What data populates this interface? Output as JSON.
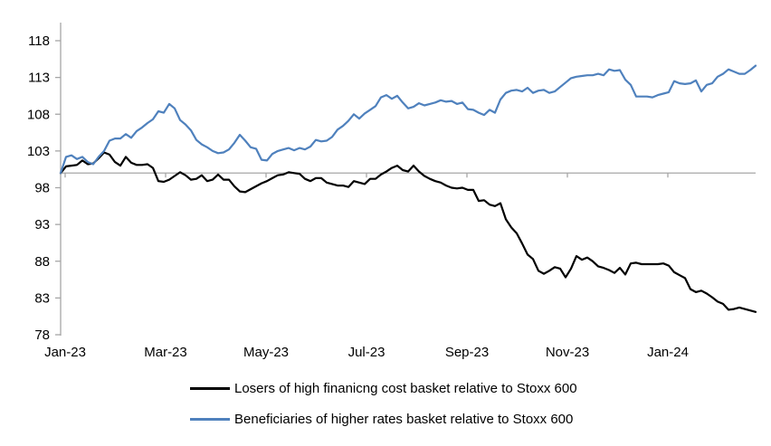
{
  "chart_data": {
    "type": "line",
    "title": "",
    "xlabel": "",
    "ylabel": "",
    "ylim": [
      78,
      118
    ],
    "y_ticks": [
      78,
      83,
      88,
      93,
      98,
      103,
      108,
      113,
      118
    ],
    "x_tick_labels": [
      "Jan-23",
      "Mar-23",
      "May-23",
      "Jul-23",
      "Sep-23",
      "Nov-23",
      "Jan-24"
    ],
    "x_range_note": "daily data Jan-2023 through late Feb-2024, uniformly spaced",
    "baseline_value": 100,
    "grid": "off",
    "legend_position": "bottom-left-stacked",
    "axis_color": "#a6a6a6",
    "baseline_color": "#a6a6a6",
    "text_color": "#000000",
    "series": [
      {
        "name": "Losers of high finanicng cost basket relative to Stoxx 600",
        "color": "#000000",
        "values": [
          100.0,
          100.9,
          101.0,
          101.1,
          101.7,
          101.2,
          101.3,
          102.0,
          102.8,
          102.5,
          101.5,
          101.0,
          102.2,
          101.4,
          101.1,
          101.1,
          101.2,
          100.7,
          98.9,
          98.8,
          99.1,
          99.6,
          100.1,
          99.7,
          99.1,
          99.2,
          99.7,
          98.9,
          99.1,
          99.8,
          99.1,
          99.1,
          98.2,
          97.5,
          97.4,
          97.8,
          98.2,
          98.6,
          98.9,
          99.3,
          99.7,
          99.8,
          100.1,
          100.0,
          99.9,
          99.2,
          98.9,
          99.3,
          99.3,
          98.7,
          98.5,
          98.3,
          98.3,
          98.1,
          98.9,
          98.7,
          98.5,
          99.2,
          99.2,
          99.8,
          100.2,
          100.7,
          101.0,
          100.4,
          100.2,
          101.0,
          100.2,
          99.6,
          99.2,
          98.9,
          98.7,
          98.3,
          98.0,
          97.9,
          98.0,
          97.7,
          97.7,
          96.2,
          96.3,
          95.7,
          95.5,
          95.9,
          93.7,
          92.6,
          91.8,
          90.4,
          88.9,
          88.3,
          86.7,
          86.3,
          86.7,
          87.2,
          87.0,
          85.8,
          87.0,
          88.7,
          88.2,
          88.5,
          88.0,
          87.3,
          87.1,
          86.8,
          86.4,
          87.1,
          86.2,
          87.7,
          87.8,
          87.6,
          87.6,
          87.6,
          87.6,
          87.7,
          87.4,
          86.5,
          86.1,
          85.7,
          84.2,
          83.8,
          84.0,
          83.6,
          83.1,
          82.5,
          82.2,
          81.4,
          81.5,
          81.7,
          81.5,
          81.3,
          81.1
        ]
      },
      {
        "name": "Beneficiaries of higher rates basket relative to Stoxx 600",
        "color": "#4f81bd",
        "values": [
          100.0,
          102.2,
          102.4,
          101.9,
          102.2,
          101.5,
          101.2,
          102.2,
          103.0,
          104.4,
          104.7,
          104.7,
          105.3,
          104.8,
          105.7,
          106.2,
          106.8,
          107.3,
          108.4,
          108.2,
          109.4,
          108.8,
          107.2,
          106.6,
          105.8,
          104.5,
          103.9,
          103.5,
          103.0,
          102.7,
          102.8,
          103.2,
          104.1,
          105.2,
          104.4,
          103.5,
          103.3,
          101.8,
          101.7,
          102.6,
          103.0,
          103.2,
          103.4,
          103.1,
          103.4,
          103.2,
          103.6,
          104.5,
          104.3,
          104.4,
          104.9,
          105.9,
          106.4,
          107.1,
          108.0,
          107.4,
          108.1,
          108.6,
          109.1,
          110.3,
          110.6,
          110.1,
          110.5,
          109.6,
          108.8,
          109.0,
          109.5,
          109.2,
          109.4,
          109.6,
          109.9,
          109.7,
          109.8,
          109.4,
          109.6,
          108.7,
          108.6,
          108.2,
          107.9,
          108.6,
          108.2,
          110.0,
          110.9,
          111.2,
          111.3,
          111.1,
          111.6,
          110.9,
          111.2,
          111.3,
          110.9,
          111.1,
          111.7,
          112.3,
          112.9,
          113.1,
          113.2,
          113.3,
          113.3,
          113.5,
          113.3,
          114.1,
          113.9,
          114.0,
          112.7,
          112.0,
          110.4,
          110.4,
          110.4,
          110.3,
          110.6,
          110.8,
          111.0,
          112.5,
          112.2,
          112.1,
          112.2,
          112.6,
          111.1,
          112.0,
          112.2,
          113.1,
          113.5,
          114.1,
          113.8,
          113.5,
          113.5,
          114.0,
          114.6
        ]
      }
    ]
  },
  "legend": {
    "items": [
      {
        "label": "Losers of high finanicng cost basket relative to Stoxx 600"
      },
      {
        "label": "Beneficiaries of higher rates basket relative to Stoxx 600"
      }
    ]
  }
}
